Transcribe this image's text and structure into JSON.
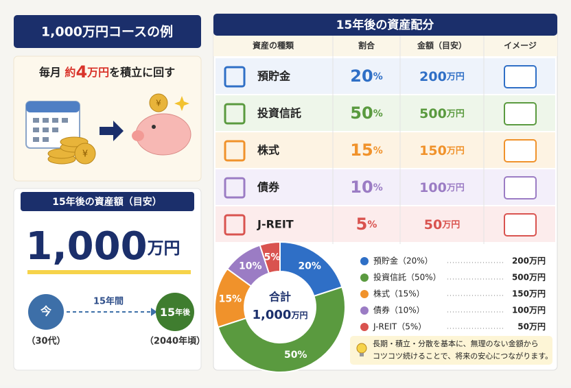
{
  "example": {
    "title": "1,000万円コースの例",
    "plan": [
      "毎月",
      "約",
      "4",
      "万円",
      "を積立に回す"
    ]
  },
  "result": {
    "title": "15年後の資産額（目安）",
    "amount": "1,000",
    "unit": "万円",
    "now": "今",
    "period": "15年間",
    "later_num": "15",
    "later_unit": "年後",
    "now_note": "（30代）",
    "later_note": "（2040年頃）"
  },
  "allocation": {
    "title": "15年後の資産配分",
    "headers": [
      "資産の種類",
      "割合",
      "金額（目安）",
      "イメージ"
    ],
    "rows": [
      {
        "name": "預貯金",
        "ratio": {
          "num": "20",
          "unit": "%"
        },
        "amount": {
          "num": "200",
          "unit": "万円"
        }
      },
      {
        "name": "投資信託",
        "ratio": {
          "num": "50",
          "unit": "%"
        },
        "amount": {
          "num": "500",
          "unit": "万円"
        }
      },
      {
        "name": "株式",
        "ratio": {
          "num": "15",
          "unit": "%"
        },
        "amount": {
          "num": "150",
          "unit": "万円"
        }
      },
      {
        "name": "債券",
        "ratio": {
          "num": "10",
          "unit": "%"
        },
        "amount": {
          "num": "100",
          "unit": "万円"
        }
      },
      {
        "name": "J-REIT",
        "ratio": {
          "num": "5",
          "unit": "%"
        },
        "amount": {
          "num": "50",
          "unit": "万円"
        }
      }
    ]
  },
  "chart_data": {
    "type": "donut",
    "categories": [
      "預貯金",
      "投資信託",
      "株式",
      "債券",
      "J-REIT"
    ],
    "values": [
      20,
      50,
      15,
      10,
      5
    ],
    "value_labels": [
      "20%",
      "50%",
      "15%",
      "10%",
      "5%"
    ],
    "colors": [
      "#2f6fc6",
      "#5a9a3f",
      "#f0922b",
      "#9b7cc4",
      "#d9534f"
    ],
    "center_label": "合計",
    "center_value": "1,000",
    "center_unit": "万円",
    "legend": [
      {
        "label": "預貯金（20%）",
        "amount": "200万円"
      },
      {
        "label": "投資信託（50%）",
        "amount": "500万円"
      },
      {
        "label": "株式（15%）",
        "amount": "150万円"
      },
      {
        "label": "債券（10%）",
        "amount": "100万円"
      },
      {
        "label": "J-REIT（5%）",
        "amount": "50万円"
      }
    ]
  },
  "note": [
    "長期・積立・分散を基本に、無理のない金額から",
    "コツコツ続けることで、将来の安心につながります。"
  ]
}
